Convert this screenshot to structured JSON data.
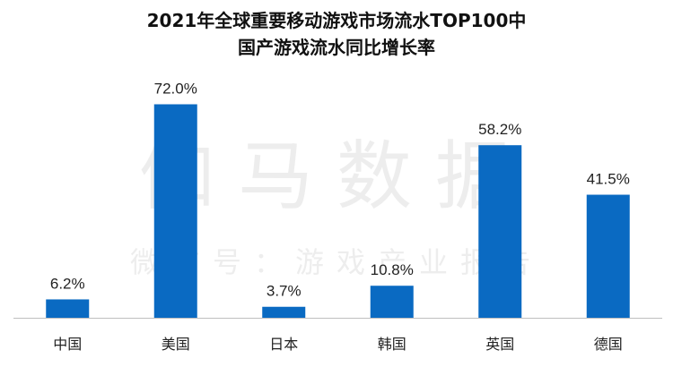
{
  "chart_data": {
    "type": "bar",
    "title_line1": "2021年全球重要移动游戏市场流水TOP100中",
    "title_line2": "国产游戏流水同比增长率",
    "categories": [
      "中国",
      "美国",
      "日本",
      "韩国",
      "英国",
      "德国"
    ],
    "values": [
      6.2,
      72.0,
      3.7,
      10.8,
      58.2,
      41.5
    ],
    "value_labels": [
      "6.2%",
      "72.0%",
      "3.7%",
      "10.8%",
      "58.2%",
      "41.5%"
    ],
    "ylim": [
      0,
      80
    ],
    "bar_color": "#0a6ac2",
    "grid": false,
    "legend": "none"
  },
  "watermark": {
    "main": "伽马数据",
    "sub": "微信号：游戏产业报告"
  }
}
